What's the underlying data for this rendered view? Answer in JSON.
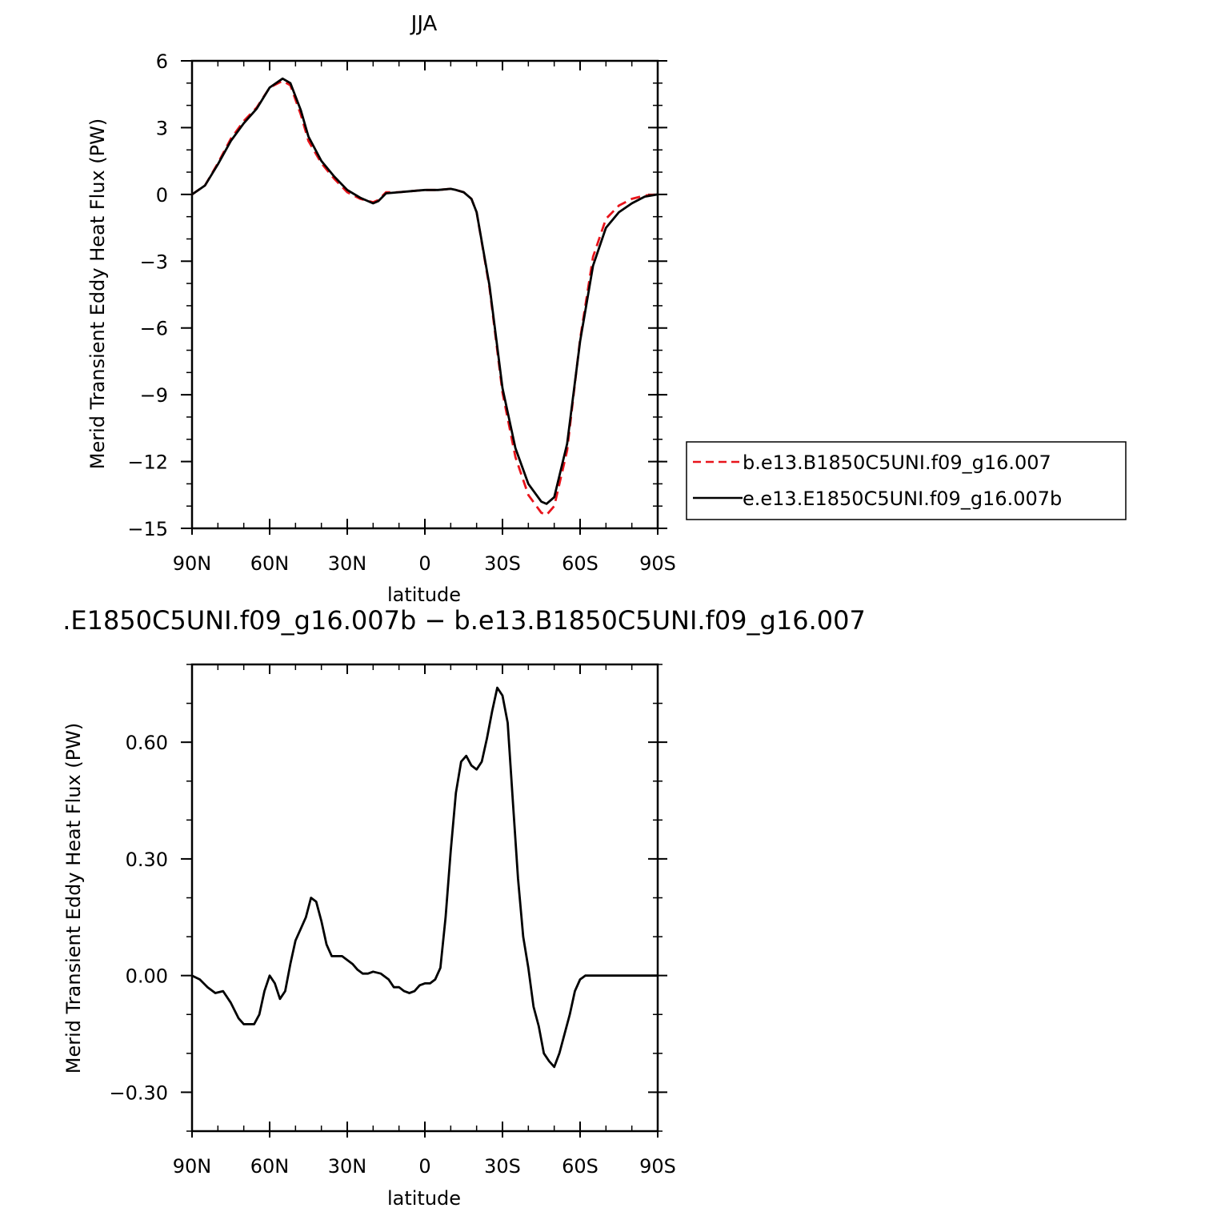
{
  "chart_data": [
    {
      "type": "line",
      "title": "JJA",
      "xlabel": "latitude",
      "ylabel": "Merid Transient Eddy Heat Flux (PW)",
      "xlim": [
        90,
        -90
      ],
      "ylim": [
        -15,
        6
      ],
      "x_ticks": [
        90,
        60,
        30,
        0,
        -30,
        -60,
        -90
      ],
      "x_tick_labels": [
        "90N",
        "60N",
        "30N",
        "0",
        "30S",
        "60S",
        "90S"
      ],
      "y_ticks": [
        6,
        3,
        0,
        -3,
        -6,
        -9,
        -12,
        -15
      ],
      "y_tick_labels": [
        "6",
        "3",
        "0",
        "−3",
        "−6",
        "−9",
        "−12",
        "−15"
      ],
      "legend_position": "right",
      "series": [
        {
          "name": "b.e13.B1850C5UNI.f09_g16.007",
          "color": "#e8141b",
          "style": "dashed",
          "x": [
            90,
            85,
            80,
            75,
            70,
            65,
            60,
            55,
            52,
            48,
            45,
            40,
            35,
            30,
            25,
            20,
            18,
            15,
            10,
            5,
            0,
            -5,
            -10,
            -12,
            -15,
            -18,
            -20,
            -25,
            -30,
            -35,
            -40,
            -45,
            -47,
            -50,
            -55,
            -60,
            -65,
            -70,
            -75,
            -80,
            -85,
            -90
          ],
          "y": [
            0,
            0.4,
            1.4,
            2.5,
            3.3,
            3.9,
            4.8,
            5.1,
            4.9,
            3.6,
            2.4,
            1.4,
            0.7,
            0.1,
            -0.2,
            -0.35,
            -0.25,
            0.1,
            0.1,
            0.15,
            0.2,
            0.2,
            0.25,
            0.2,
            0.1,
            -0.2,
            -0.8,
            -4.2,
            -8.9,
            -11.8,
            -13.5,
            -14.3,
            -14.4,
            -14.0,
            -11.5,
            -6.5,
            -2.8,
            -1.1,
            -0.5,
            -0.2,
            -0.05,
            0
          ]
        },
        {
          "name": "e.e13.E1850C5UNI.f09_g16.007b",
          "color": "#000000",
          "style": "solid",
          "x": [
            90,
            85,
            80,
            75,
            70,
            65,
            60,
            55,
            52,
            48,
            45,
            40,
            35,
            30,
            25,
            20,
            18,
            15,
            10,
            5,
            0,
            -5,
            -10,
            -12,
            -15,
            -18,
            -20,
            -25,
            -30,
            -35,
            -40,
            -45,
            -47,
            -50,
            -55,
            -60,
            -65,
            -70,
            -75,
            -80,
            -85,
            -90
          ],
          "y": [
            0,
            0.4,
            1.35,
            2.4,
            3.2,
            3.85,
            4.8,
            5.2,
            5.0,
            3.8,
            2.6,
            1.5,
            0.8,
            0.2,
            -0.15,
            -0.4,
            -0.3,
            0.05,
            0.1,
            0.15,
            0.2,
            0.2,
            0.25,
            0.2,
            0.1,
            -0.2,
            -0.8,
            -4.1,
            -8.7,
            -11.4,
            -13.0,
            -13.8,
            -13.9,
            -13.6,
            -11.2,
            -6.6,
            -3.2,
            -1.5,
            -0.8,
            -0.4,
            -0.1,
            0
          ]
        }
      ]
    },
    {
      "type": "line",
      "title": ".E1850C5UNI.f09_g16.007b − b.e13.B1850C5UNI.f09_g16.007",
      "xlabel": "latitude",
      "ylabel": "Merid Transient Eddy Heat Flux (PW)",
      "xlim": [
        90,
        -90
      ],
      "ylim": [
        -0.4,
        0.8
      ],
      "x_ticks": [
        90,
        60,
        30,
        0,
        -30,
        -60,
        -90
      ],
      "x_tick_labels": [
        "90N",
        "60N",
        "30N",
        "0",
        "30S",
        "60S",
        "90S"
      ],
      "y_ticks": [
        0.6,
        0.3,
        0.0,
        -0.3
      ],
      "y_tick_labels": [
        "0.60",
        "0.30",
        "0.00",
        "−0.30"
      ],
      "series": [
        {
          "color": "#000000",
          "style": "solid",
          "x": [
            90,
            87,
            84,
            81,
            78,
            75,
            72,
            70,
            68,
            66,
            64,
            62,
            60,
            58,
            56,
            54,
            52,
            50,
            48,
            46,
            44,
            42,
            40,
            38,
            36,
            34,
            32,
            30,
            28,
            26,
            24,
            22,
            20,
            17,
            14,
            12,
            10,
            8,
            6,
            4,
            2,
            0,
            -2,
            -4,
            -6,
            -8,
            -10,
            -12,
            -14,
            -16,
            -18,
            -20,
            -22,
            -24,
            -26,
            -28,
            -30,
            -32,
            -34,
            -36,
            -38,
            -40,
            -42,
            -44,
            -46,
            -48,
            -50,
            -52,
            -54,
            -56,
            -57,
            -58,
            -60,
            -62,
            -64,
            -66,
            -68,
            -70,
            -72,
            -74,
            -75,
            -76,
            -77,
            -78,
            -79,
            -80,
            -82,
            -84,
            -86,
            -87,
            -88,
            -90
          ],
          "y": [
            0,
            -0.01,
            -0.03,
            -0.045,
            -0.04,
            -0.07,
            -0.11,
            -0.125,
            -0.125,
            -0.125,
            -0.1,
            -0.04,
            0.0,
            -0.02,
            -0.06,
            -0.04,
            0.03,
            0.09,
            0.12,
            0.15,
            0.2,
            0.19,
            0.14,
            0.08,
            0.05,
            0.05,
            0.05,
            0.04,
            0.03,
            0.015,
            0.005,
            0.005,
            0.01,
            0.005,
            -0.01,
            -0.03,
            -0.03,
            -0.04,
            -0.045,
            -0.04,
            -0.025,
            -0.02,
            -0.02,
            -0.01,
            0.02,
            0.15,
            0.32,
            0.47,
            0.55,
            0.565,
            0.54,
            0.53,
            0.55,
            0.61,
            0.68,
            0.74,
            0.72,
            0.65,
            0.45,
            0.25,
            0.1,
            0.02,
            -0.08,
            -0.13,
            -0.2,
            -0.22,
            -0.235,
            -0.2,
            -0.15,
            -0.1,
            -0.07,
            -0.04,
            -0.01,
            0,
            0,
            0,
            0,
            0,
            0,
            0,
            0,
            0,
            0,
            0,
            0,
            0,
            0,
            0,
            0,
            0,
            0,
            0
          ]
        }
      ]
    }
  ]
}
